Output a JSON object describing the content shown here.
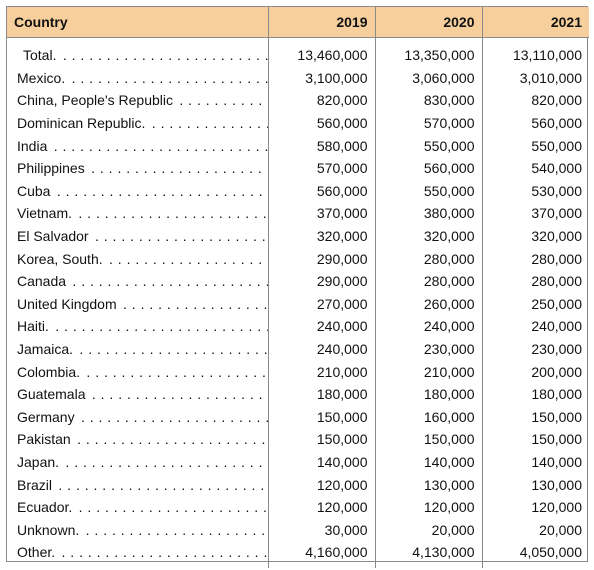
{
  "header": {
    "country": "Country",
    "years": [
      "2019",
      "2020",
      "2021"
    ]
  },
  "rows": [
    {
      "country": "Total.",
      "values": [
        "13,460,000",
        "13,350,000",
        "13,110,000"
      ]
    },
    {
      "country": "Mexico.",
      "values": [
        "3,100,000",
        "3,060,000",
        "3,010,000"
      ]
    },
    {
      "country": "China, People's Republic",
      "values": [
        "820,000",
        "830,000",
        "820,000"
      ]
    },
    {
      "country": "Dominican Republic.",
      "values": [
        "560,000",
        "570,000",
        "560,000"
      ]
    },
    {
      "country": "India",
      "values": [
        "580,000",
        "550,000",
        "550,000"
      ]
    },
    {
      "country": "Philippines",
      "values": [
        "570,000",
        "560,000",
        "540,000"
      ]
    },
    {
      "country": "Cuba",
      "values": [
        "560,000",
        "550,000",
        "530,000"
      ]
    },
    {
      "country": "Vietnam.",
      "values": [
        "370,000",
        "380,000",
        "370,000"
      ]
    },
    {
      "country": "El Salvador",
      "values": [
        "320,000",
        "320,000",
        "320,000"
      ]
    },
    {
      "country": "Korea, South.",
      "values": [
        "290,000",
        "280,000",
        "280,000"
      ]
    },
    {
      "country": "Canada",
      "values": [
        "290,000",
        "280,000",
        "280,000"
      ]
    },
    {
      "country": "United Kingdom",
      "values": [
        "270,000",
        "260,000",
        "250,000"
      ]
    },
    {
      "country": "Haiti.",
      "values": [
        "240,000",
        "240,000",
        "240,000"
      ]
    },
    {
      "country": "Jamaica.",
      "values": [
        "240,000",
        "230,000",
        "230,000"
      ]
    },
    {
      "country": "Colombia.",
      "values": [
        "210,000",
        "210,000",
        "200,000"
      ]
    },
    {
      "country": "Guatemala",
      "values": [
        "180,000",
        "180,000",
        "180,000"
      ]
    },
    {
      "country": "Germany",
      "values": [
        "150,000",
        "160,000",
        "150,000"
      ]
    },
    {
      "country": "Pakistan",
      "values": [
        "150,000",
        "150,000",
        "150,000"
      ]
    },
    {
      "country": "Japan.",
      "values": [
        "140,000",
        "140,000",
        "140,000"
      ]
    },
    {
      "country": "Brazil",
      "values": [
        "120,000",
        "130,000",
        "130,000"
      ]
    },
    {
      "country": "Ecuador.",
      "values": [
        "120,000",
        "120,000",
        "120,000"
      ]
    },
    {
      "country": "Unknown.",
      "values": [
        "30,000",
        "20,000",
        "20,000"
      ]
    },
    {
      "country": "Other.",
      "values": [
        "4,160,000",
        "4,130,000",
        "4,050,000"
      ]
    }
  ]
}
